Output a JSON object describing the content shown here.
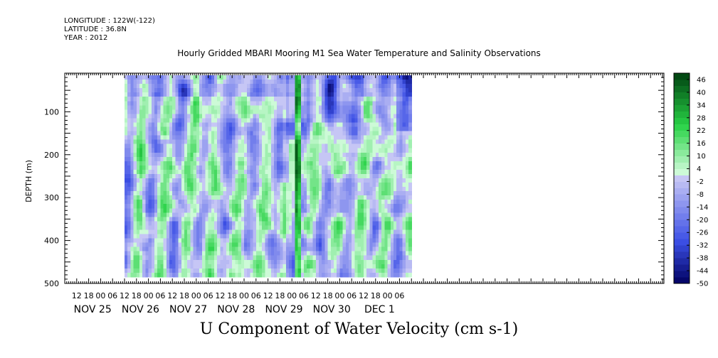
{
  "header": {
    "longitude": "LONGITUDE : 122W(-122)",
    "latitude": "LATITUDE : 36.8N",
    "year": "YEAR : 2012"
  },
  "chart_data": {
    "type": "heatmap",
    "title": "Hourly Gridded MBARI Mooring M1 Sea Water Temperature and Salinity Observations",
    "xlabel": "U Component of Water Velocity (cm s-1)",
    "ylabel": "DEPTH (m)",
    "ylim": [
      500,
      10
    ],
    "y_ticks": [
      100,
      200,
      300,
      400,
      500
    ],
    "x_range": [
      "NOV 24 06:00",
      "DEC 1 12:00"
    ],
    "x_hour_ticks": [
      "12",
      "18",
      "00",
      "06",
      "12",
      "18",
      "00",
      "06",
      "12",
      "18",
      "00",
      "06",
      "12",
      "18",
      "00",
      "06",
      "12",
      "18",
      "00",
      "06",
      "12",
      "18",
      "00",
      "06",
      "12",
      "18",
      "00",
      "06"
    ],
    "x_date_labels": [
      "NOV 25",
      "NOV 26",
      "NOV 27",
      "NOV 28",
      "NOV 29",
      "NOV 30",
      "DEC  1"
    ],
    "colorbar": {
      "labels": [
        "46",
        "40",
        "34",
        "28",
        "22",
        "16",
        "10",
        "4",
        "-2",
        "-8",
        "-14",
        "-20",
        "-26",
        "-32",
        "-38",
        "-44",
        "-50"
      ],
      "step": 3,
      "min": -50,
      "max": 49,
      "low_color": "#000060",
      "mid_color": "#e0ffe8",
      "high_color": "#004010"
    },
    "field_description_values": {
      "depth_range_m": [
        15,
        485
      ],
      "data_time_range": [
        "NOV 25 12:00",
        "DEC 1 12:00"
      ],
      "typical_value_range": [
        -32,
        28
      ]
    }
  }
}
